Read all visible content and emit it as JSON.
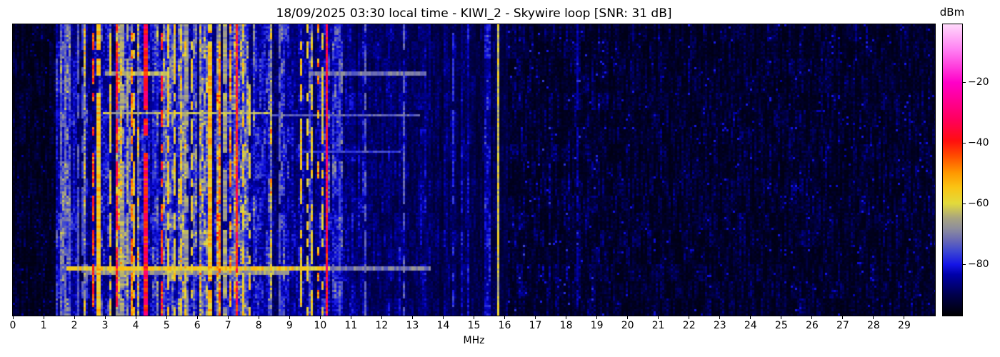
{
  "chart_data": {
    "type": "heatmap",
    "subtype": "radio-spectrogram-waterfall",
    "title": "18/09/2025 03:30 local time - KIWI_2 - Skywire loop [SNR: 31 dB]",
    "xlabel": "MHz",
    "x_range": [
      0,
      30
    ],
    "x_ticks": [
      0,
      1,
      2,
      3,
      4,
      5,
      6,
      7,
      8,
      9,
      10,
      11,
      12,
      13,
      14,
      15,
      16,
      17,
      18,
      19,
      20,
      21,
      22,
      23,
      24,
      25,
      26,
      27,
      28,
      29
    ],
    "x_tick_labels": [
      "0",
      "1",
      "2",
      "3",
      "4",
      "5",
      "6",
      "7",
      "8",
      "9",
      "10",
      "11",
      "12",
      "13",
      "14",
      "15",
      "16",
      "17",
      "18",
      "19",
      "20",
      "21",
      "22",
      "23",
      "24",
      "25",
      "26",
      "27",
      "28",
      "29"
    ],
    "grid": false,
    "legend": "none",
    "colorbar": {
      "label": "dBm",
      "vmin": -97,
      "vmax": -1,
      "ticks": [
        {
          "value": -20,
          "label": "−20"
        },
        {
          "value": -40,
          "label": "−40"
        },
        {
          "value": -60,
          "label": "−60"
        },
        {
          "value": -80,
          "label": "−80"
        }
      ]
    },
    "colormap_stops": [
      [
        0.0,
        "#000002"
      ],
      [
        0.07,
        "#00004a"
      ],
      [
        0.14,
        "#0000a8"
      ],
      [
        0.175,
        "#1414e6"
      ],
      [
        0.22,
        "#3c46d2"
      ],
      [
        0.26,
        "#6a6ab4"
      ],
      [
        0.3,
        "#8f8f9b"
      ],
      [
        0.335,
        "#a8a480"
      ],
      [
        0.385,
        "#e2da3c"
      ],
      [
        0.44,
        "#fac414"
      ],
      [
        0.49,
        "#ff9800"
      ],
      [
        0.55,
        "#ff4a00"
      ],
      [
        0.6,
        "#ff0f0f"
      ],
      [
        0.67,
        "#ff005a"
      ],
      [
        0.8,
        "#ff00c8"
      ],
      [
        0.91,
        "#ff7df2"
      ],
      [
        1.0,
        "#ffd9fb"
      ]
    ],
    "speckle": {
      "band": [
        0.45,
        0.9,
        1.8
      ],
      "dark": [
        0.3,
        1.9,
        2.5
      ]
    },
    "noise_regions": [
      {
        "f0": 0.0,
        "f1": 1.42,
        "base": 0.05
      },
      {
        "f0": 1.42,
        "f1": 1.95,
        "base": 0.18,
        "palette": [
          [
            0.55,
            0.17
          ],
          [
            0.8,
            0.22
          ],
          [
            1.0,
            0.27
          ]
        ]
      },
      {
        "f0": 1.95,
        "f1": 8.45,
        "base": 0.24,
        "palette": [
          [
            0.42,
            0.2
          ],
          [
            0.54,
            0.14
          ],
          [
            0.74,
            0.3
          ],
          [
            0.86,
            0.37
          ],
          [
            1.0,
            0.43
          ]
        ]
      },
      {
        "f0": 8.45,
        "f1": 10.6,
        "base": 0.15,
        "palette": [
          [
            0.5,
            0.13
          ],
          [
            0.8,
            0.17
          ],
          [
            0.94,
            0.22
          ],
          [
            1.0,
            0.3
          ]
        ]
      },
      {
        "f0": 10.6,
        "f1": 13.6,
        "base": 0.14,
        "palette": [
          [
            0.5,
            0.125
          ],
          [
            0.82,
            0.165
          ],
          [
            0.96,
            0.22
          ],
          [
            1.0,
            0.26
          ]
        ]
      },
      {
        "f0": 13.6,
        "f1": 16.1,
        "base": 0.1,
        "palette": [
          [
            0.6,
            0.09
          ],
          [
            0.9,
            0.13
          ],
          [
            1.0,
            0.18
          ]
        ]
      },
      {
        "f0": 16.1,
        "f1": 19.0,
        "base": 0.075
      },
      {
        "f0": 19.0,
        "f1": 30.0,
        "base": 0.062
      }
    ],
    "signals": [
      {
        "f": 1.55,
        "w": 0.04,
        "lv": 0.24,
        "p": 0.9
      },
      {
        "f": 1.7,
        "w": 0.04,
        "lv": 0.25,
        "p": 0.9
      },
      {
        "f": 1.86,
        "w": 0.04,
        "lv": 0.24,
        "p": 0.8
      },
      {
        "f": 1.95,
        "w": 0.025,
        "lv": 0.3,
        "p": 0.9
      },
      {
        "f": 2.1,
        "w": 0.05,
        "lv": 0.24,
        "p": 0.8
      },
      {
        "f": 2.26,
        "w": 0.04,
        "lv": 0.23,
        "p": 0.7
      },
      {
        "f": 2.5,
        "w": 0.05,
        "lv": 0.41,
        "p": 0.8
      },
      {
        "f": 2.62,
        "w": 0.04,
        "lv": 0.56,
        "p": 0.5
      },
      {
        "f": 2.78,
        "w": 0.18,
        "lv": 0.43,
        "p": 0.9
      },
      {
        "f": 3.18,
        "w": 0.04,
        "lv": 0.4,
        "p": 0.7
      },
      {
        "f": 3.35,
        "w": 0.06,
        "lv": 0.62,
        "p": 0.75
      },
      {
        "f": 3.55,
        "w": 0.2,
        "lv": 0.32,
        "p": 0.9
      },
      {
        "f": 3.72,
        "w": 0.12,
        "lv": 0.33,
        "p": 0.8
      },
      {
        "f": 3.86,
        "w": 0.04,
        "lv": 0.5,
        "p": 0.6
      },
      {
        "f": 3.95,
        "w": 0.05,
        "lv": 0.41,
        "p": 0.6
      },
      {
        "f": 4.32,
        "w": 0.1,
        "lv": 0.63,
        "p": 0.92
      },
      {
        "f": 4.45,
        "w": 0.05,
        "lv": 0.42,
        "p": 0.8
      },
      {
        "f": 4.82,
        "w": 0.04,
        "lv": 0.58,
        "p": 0.45
      },
      {
        "f": 5.06,
        "w": 0.06,
        "lv": 0.41,
        "p": 0.75
      },
      {
        "f": 5.26,
        "w": 0.05,
        "lv": 0.4,
        "p": 0.6
      },
      {
        "f": 5.45,
        "w": 0.04,
        "lv": 0.4,
        "p": 0.5
      },
      {
        "f": 5.62,
        "w": 0.15,
        "lv": 0.31,
        "p": 0.8
      },
      {
        "f": 5.8,
        "w": 0.04,
        "lv": 0.4,
        "p": 0.6
      },
      {
        "f": 6.2,
        "w": 0.05,
        "lv": 0.41,
        "p": 0.6
      },
      {
        "f": 6.42,
        "w": 0.16,
        "lv": 0.44,
        "p": 0.9
      },
      {
        "f": 6.72,
        "w": 0.05,
        "lv": 0.5,
        "p": 0.6
      },
      {
        "f": 6.9,
        "w": 0.12,
        "lv": 0.32,
        "p": 0.8
      },
      {
        "f": 7.06,
        "w": 0.04,
        "lv": 0.48,
        "p": 0.5
      },
      {
        "f": 7.26,
        "w": 0.1,
        "lv": 0.62,
        "p": 0.95
      },
      {
        "f": 7.5,
        "w": 0.05,
        "lv": 0.41,
        "p": 0.6
      },
      {
        "f": 7.7,
        "w": 0.03,
        "lv": 0.4,
        "p": 0.5
      },
      {
        "f": 8.42,
        "w": 0.03,
        "lv": 0.42,
        "p": 0.55
      },
      {
        "f": 8.65,
        "w": 0.04,
        "lv": 0.24,
        "p": 0.8
      },
      {
        "f": 8.9,
        "w": 0.04,
        "lv": 0.22,
        "p": 0.7
      },
      {
        "f": 9.1,
        "w": 0.03,
        "lv": 0.42,
        "p": 0.6
      },
      {
        "f": 9.2,
        "w": 0.04,
        "lv": 0.52,
        "p": 0.4
      },
      {
        "f": 9.38,
        "w": 0.06,
        "lv": 0.41,
        "p": 0.7
      },
      {
        "f": 9.55,
        "w": 0.05,
        "lv": 0.4,
        "p": 0.6
      },
      {
        "f": 9.72,
        "w": 0.04,
        "lv": 0.4,
        "p": 0.5
      },
      {
        "f": 9.93,
        "w": 0.04,
        "lv": 0.5,
        "p": 0.35
      },
      {
        "f": 10.05,
        "w": 0.03,
        "lv": 0.4,
        "p": 0.5
      },
      {
        "f": 10.18,
        "w": 0.05,
        "lv": 0.63,
        "p": 1.0
      },
      {
        "f": 10.6,
        "w": 0.03,
        "lv": 0.22,
        "p": 0.6
      },
      {
        "f": 11.15,
        "w": 0.04,
        "lv": 0.24,
        "p": 0.8
      },
      {
        "f": 11.45,
        "w": 0.04,
        "lv": 0.24,
        "p": 0.7
      },
      {
        "f": 11.75,
        "w": 0.04,
        "lv": 0.25,
        "p": 0.8
      },
      {
        "f": 12.1,
        "w": 0.04,
        "lv": 0.24,
        "p": 0.7
      },
      {
        "f": 12.4,
        "w": 0.03,
        "lv": 0.22,
        "p": 0.6
      },
      {
        "f": 12.7,
        "w": 0.04,
        "lv": 0.24,
        "p": 0.7
      },
      {
        "f": 13.0,
        "w": 0.03,
        "lv": 0.23,
        "p": 0.6
      },
      {
        "f": 13.28,
        "w": 0.03,
        "lv": 0.24,
        "p": 0.7
      },
      {
        "f": 13.58,
        "w": 0.03,
        "lv": 0.36,
        "p": 0.7
      },
      {
        "f": 13.72,
        "w": 0.025,
        "lv": 0.3,
        "p": 0.6
      },
      {
        "f": 14.0,
        "w": 0.05,
        "lv": 0.22,
        "p": 0.8
      },
      {
        "f": 14.3,
        "w": 0.04,
        "lv": 0.2,
        "p": 0.6
      },
      {
        "f": 14.6,
        "w": 0.02,
        "lv": 0.28,
        "p": 0.4
      },
      {
        "f": 15.77,
        "w": 0.035,
        "lv": 0.38,
        "p": 1.0
      },
      {
        "f": 16.2,
        "w": 0.03,
        "lv": 0.16,
        "p": 0.5
      },
      {
        "f": 17.6,
        "w": 0.04,
        "lv": 0.26,
        "p": 0.95
      },
      {
        "f": 18.35,
        "w": 0.03,
        "lv": 0.14,
        "p": 0.6
      }
    ],
    "bursts": [
      {
        "row": 0.168,
        "th": 0.012,
        "f0": 3.0,
        "f1": 5.0,
        "lv": 0.34
      },
      {
        "row": 0.168,
        "th": 0.012,
        "f0": 9.6,
        "f1": 13.45,
        "lv": 0.27
      },
      {
        "row": 0.305,
        "th": 0.01,
        "f0": 2.9,
        "f1": 8.4,
        "lv": 0.34
      },
      {
        "row": 0.312,
        "th": 0.01,
        "f0": 8.4,
        "f1": 13.2,
        "lv": 0.25
      },
      {
        "row": 0.44,
        "th": 0.008,
        "f0": 9.3,
        "f1": 12.6,
        "lv": 0.22
      },
      {
        "row": 0.838,
        "th": 0.014,
        "f0": 1.75,
        "f1": 10.3,
        "lv": 0.41
      },
      {
        "row": 0.838,
        "th": 0.014,
        "f0": 10.3,
        "f1": 13.6,
        "lv": 0.28
      },
      {
        "row": 0.852,
        "th": 0.01,
        "f0": 2.4,
        "f1": 9.0,
        "lv": 0.31
      }
    ]
  }
}
